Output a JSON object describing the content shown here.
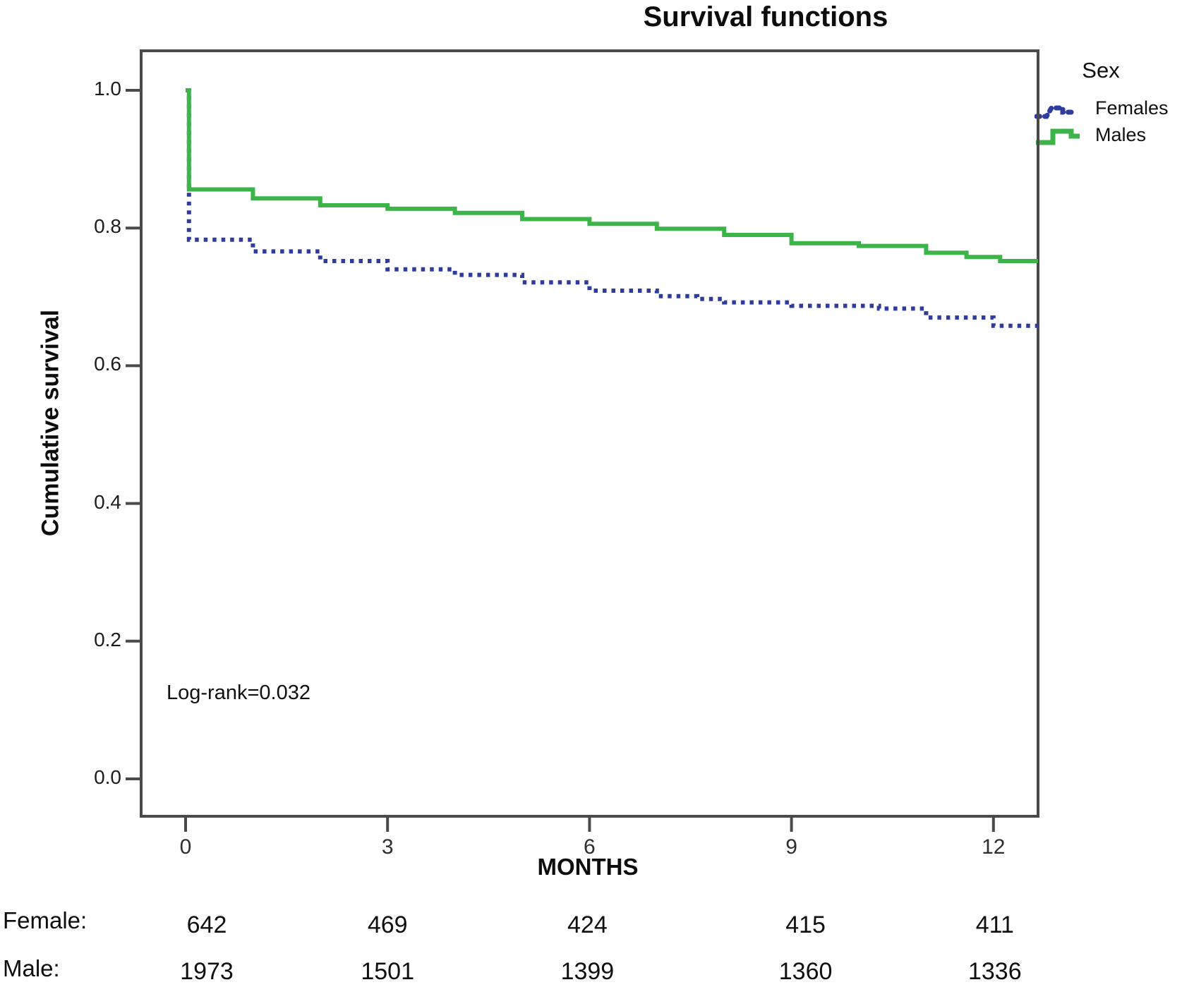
{
  "chart_data": {
    "type": "line",
    "subtype": "kaplan-meier-step",
    "title": "Survival functions",
    "xlabel": "MONTHS",
    "ylabel": "Cumulative survival",
    "annotation": "Log-rank=0.032",
    "xlim": [
      0,
      12.66
    ],
    "ylim": [
      0.0,
      1.0
    ],
    "xticks": [
      0,
      3,
      6,
      9,
      12
    ],
    "yticks": [
      "1.0",
      "0.8",
      "0.6",
      "0.4",
      "0.2",
      "0.0"
    ],
    "ytick_values": [
      1.0,
      0.8,
      0.6,
      0.4,
      0.2,
      0.0
    ],
    "grid": false,
    "legend": {
      "title": "Sex",
      "position": "right",
      "entries": [
        {
          "label": "Females",
          "color": "#2f3c9e",
          "style": "dotted"
        },
        {
          "label": "Males",
          "color": "#3cb44a",
          "style": "solid"
        }
      ]
    },
    "series": [
      {
        "name": "Females",
        "color": "#2f3c9e",
        "style": "dotted",
        "end_month": 12.66,
        "points": [
          [
            0,
            1.0
          ],
          [
            0.05,
            0.783
          ],
          [
            1,
            0.766
          ],
          [
            2,
            0.752
          ],
          [
            3,
            0.74
          ],
          [
            4,
            0.732
          ],
          [
            5,
            0.721
          ],
          [
            6,
            0.709
          ],
          [
            7,
            0.701
          ],
          [
            7.6,
            0.697
          ],
          [
            8,
            0.692
          ],
          [
            9,
            0.687
          ],
          [
            10.3,
            0.683
          ],
          [
            11,
            0.67
          ],
          [
            12,
            0.658
          ]
        ]
      },
      {
        "name": "Males",
        "color": "#3cb44a",
        "style": "solid",
        "end_month": 12.66,
        "points": [
          [
            0,
            1.0
          ],
          [
            0.05,
            0.856
          ],
          [
            1,
            0.843
          ],
          [
            2,
            0.833
          ],
          [
            3,
            0.828
          ],
          [
            4,
            0.822
          ],
          [
            5,
            0.813
          ],
          [
            6,
            0.806
          ],
          [
            7,
            0.799
          ],
          [
            8,
            0.79
          ],
          [
            9,
            0.778
          ],
          [
            10,
            0.774
          ],
          [
            11,
            0.764
          ],
          [
            11.6,
            0.758
          ],
          [
            12.1,
            0.752
          ]
        ]
      }
    ],
    "risk_table": {
      "months": [
        0,
        3,
        6,
        9,
        12
      ],
      "rows": [
        {
          "label": "Female:",
          "values": [
            "642",
            "469",
            "424",
            "415",
            "411"
          ]
        },
        {
          "label": "Male:",
          "values": [
            "1973",
            "1501",
            "1399",
            "1360",
            "1336"
          ]
        }
      ]
    },
    "colors": {
      "frame": "#4a4a4a",
      "females_line": "#2f3c9e",
      "males_line": "#3cb44a",
      "text": "#101010"
    }
  }
}
